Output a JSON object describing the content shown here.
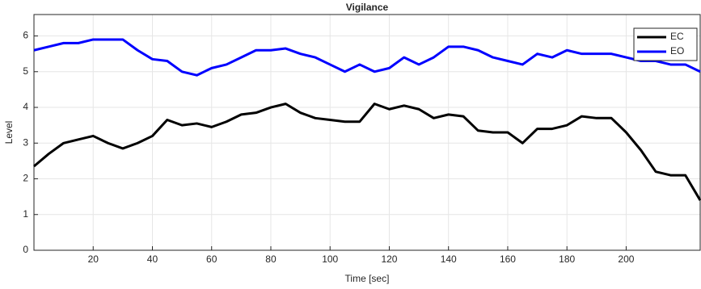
{
  "chart_data": {
    "type": "line",
    "title": "Vigilance",
    "x_label": "Time [sec]",
    "y_label": "Level",
    "x": [
      0,
      5,
      10,
      15,
      20,
      25,
      30,
      35,
      40,
      45,
      50,
      55,
      60,
      65,
      70,
      75,
      80,
      85,
      90,
      95,
      100,
      105,
      110,
      115,
      120,
      125,
      130,
      135,
      140,
      145,
      150,
      155,
      160,
      165,
      170,
      175,
      180,
      185,
      190,
      195,
      200,
      205,
      210,
      215,
      220,
      225
    ],
    "series": [
      {
        "name": "EC",
        "color": "#000000",
        "values": [
          2.35,
          2.7,
          3.0,
          3.1,
          3.2,
          3.0,
          2.85,
          3.0,
          3.2,
          3.65,
          3.5,
          3.55,
          3.45,
          3.6,
          3.8,
          3.85,
          4.0,
          4.1,
          3.85,
          3.7,
          3.65,
          3.6,
          3.6,
          4.1,
          3.95,
          4.05,
          3.95,
          3.7,
          3.8,
          3.75,
          3.35,
          3.3,
          3.3,
          3.0,
          3.4,
          3.4,
          3.5,
          3.75,
          3.7,
          3.7,
          3.3,
          2.8,
          2.2,
          2.1,
          2.1,
          1.4
        ]
      },
      {
        "name": "EO",
        "color": "#0000ff",
        "values": [
          5.6,
          5.7,
          5.8,
          5.8,
          5.9,
          5.9,
          5.9,
          5.6,
          5.35,
          5.3,
          5.0,
          4.9,
          5.1,
          5.2,
          5.4,
          5.6,
          5.6,
          5.65,
          5.5,
          5.4,
          5.2,
          5.0,
          5.2,
          5.0,
          5.1,
          5.4,
          5.2,
          5.4,
          5.7,
          5.7,
          5.6,
          5.4,
          5.3,
          5.2,
          5.5,
          5.4,
          5.6,
          5.5,
          5.5,
          5.5,
          5.4,
          5.3,
          5.3,
          5.2,
          5.2,
          5.0
        ]
      }
    ],
    "xlim": [
      0,
      225
    ],
    "ylim": [
      0,
      6.6
    ],
    "xticks": [
      20,
      40,
      60,
      80,
      100,
      120,
      140,
      160,
      180,
      200
    ],
    "yticks": [
      0,
      1,
      2,
      3,
      4,
      5,
      6
    ],
    "grid": true,
    "legend": "upper right"
  }
}
